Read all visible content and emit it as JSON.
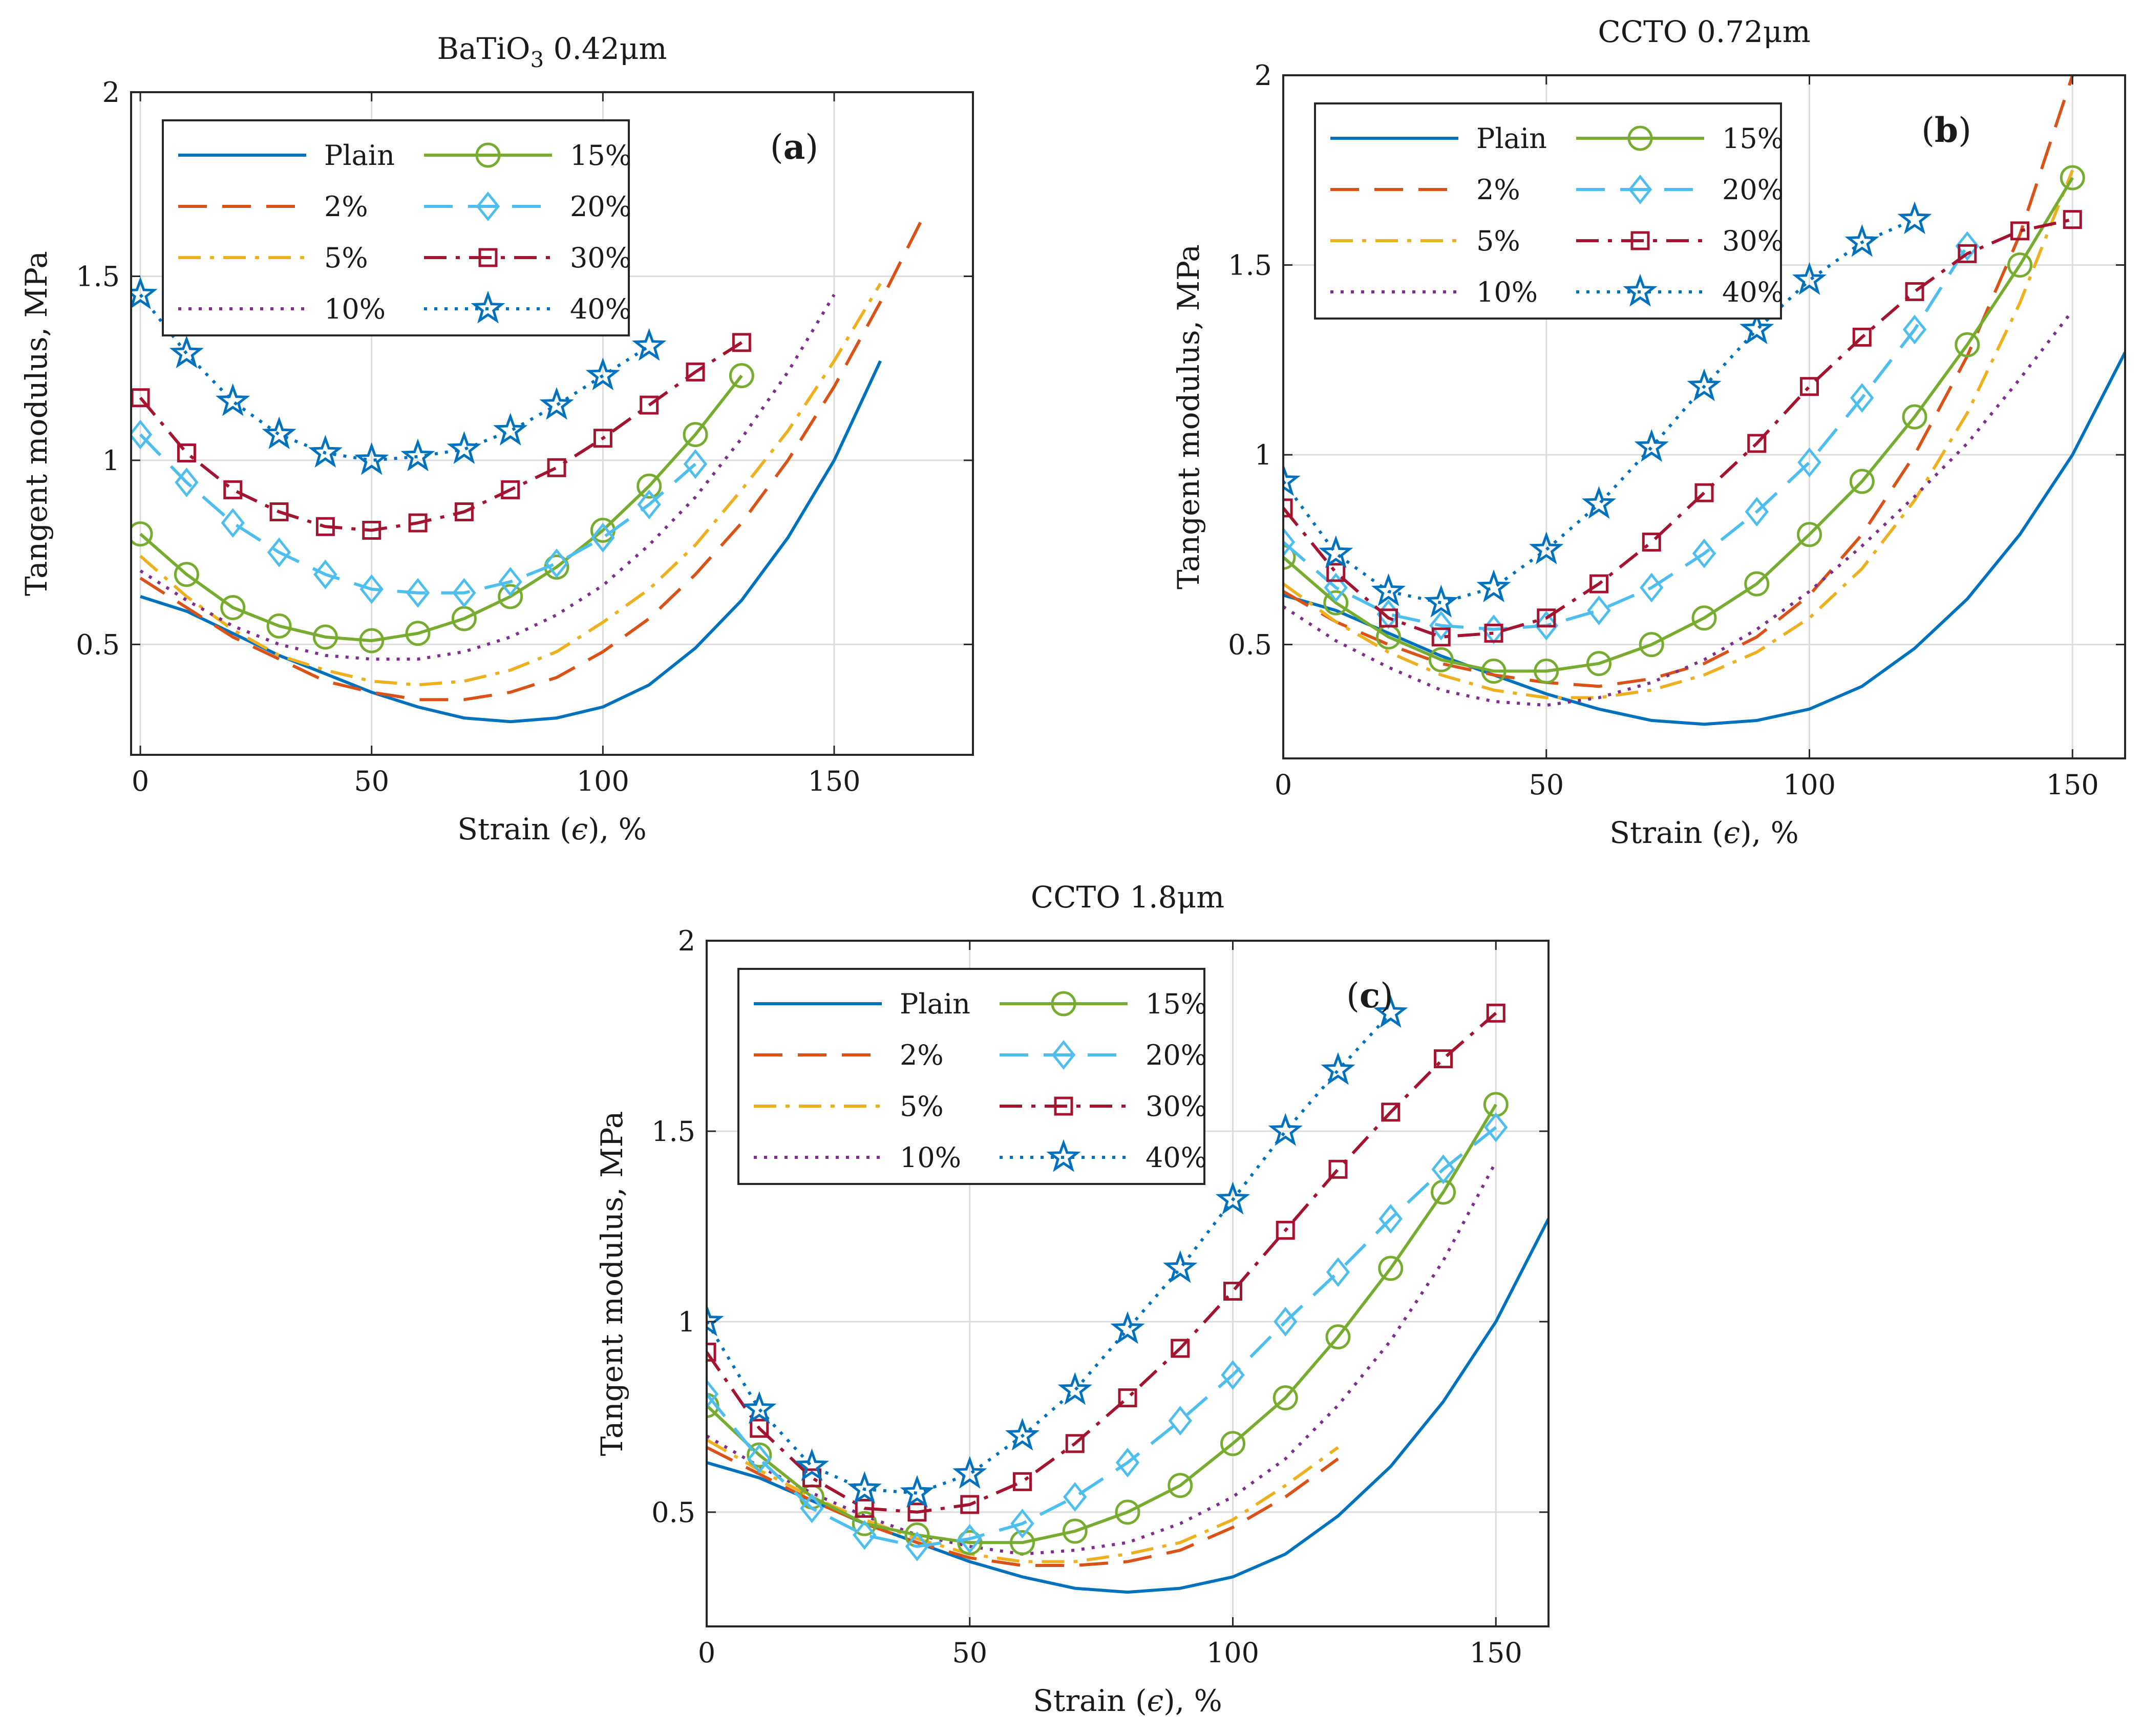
{
  "figure": {
    "series_labels": [
      "Plain",
      "2%",
      "5%",
      "10%",
      "15%",
      "20%",
      "30%",
      "40%"
    ],
    "series_colors": [
      "#0072BD",
      "#D95319",
      "#EDB120",
      "#7E2F8E",
      "#77AC30",
      "#4DBEEE",
      "#A2142F",
      "#0072BD"
    ]
  },
  "chart_data": [
    {
      "type": "line",
      "panel_label": "(a)",
      "title": "BaTiO3 0.42μm",
      "title_main": "BaTiO",
      "title_sub": "3",
      "title_tail": " 0.42μm",
      "xlabel_prefix": "Strain (",
      "xlabel_symbol": "ϵ",
      "xlabel_suffix": "), %",
      "ylabel": "Tangent modulus, MPa",
      "xlim": [
        -2,
        180
      ],
      "ylim": [
        0.2,
        2
      ],
      "xticks": [
        0,
        50,
        100,
        150
      ],
      "yticks": [
        0.5,
        1,
        1.5,
        2
      ],
      "xtick_labels": [
        "0",
        "50",
        "100",
        "150"
      ],
      "ytick_labels": [
        "0.5",
        "1",
        "1.5",
        "2"
      ],
      "grid": true,
      "legend_location": "top-left",
      "series": [
        {
          "name": "Plain",
          "x": [
            0,
            10,
            20,
            30,
            40,
            50,
            60,
            70,
            80,
            90,
            100,
            110,
            120,
            130,
            140,
            150,
            160
          ],
          "values": [
            0.63,
            0.59,
            0.53,
            0.47,
            0.42,
            0.37,
            0.33,
            0.3,
            0.29,
            0.3,
            0.33,
            0.39,
            0.49,
            0.62,
            0.79,
            1.0,
            1.27
          ]
        },
        {
          "name": "2%",
          "x": [
            0,
            10,
            20,
            30,
            40,
            50,
            60,
            70,
            80,
            90,
            100,
            110,
            120,
            130,
            140,
            150,
            160,
            170
          ],
          "values": [
            0.68,
            0.6,
            0.52,
            0.46,
            0.4,
            0.37,
            0.35,
            0.35,
            0.37,
            0.41,
            0.48,
            0.57,
            0.69,
            0.83,
            1.0,
            1.2,
            1.43,
            1.68
          ]
        },
        {
          "name": "5%",
          "x": [
            0,
            10,
            20,
            30,
            40,
            50,
            60,
            70,
            80,
            90,
            100,
            110,
            120,
            130,
            140,
            150,
            160
          ],
          "values": [
            0.74,
            0.63,
            0.54,
            0.47,
            0.43,
            0.4,
            0.39,
            0.4,
            0.43,
            0.48,
            0.56,
            0.65,
            0.77,
            0.92,
            1.08,
            1.27,
            1.48
          ]
        },
        {
          "name": "10%",
          "x": [
            0,
            10,
            20,
            30,
            40,
            50,
            60,
            70,
            80,
            90,
            100,
            110,
            120,
            130,
            140,
            150
          ],
          "values": [
            0.7,
            0.62,
            0.55,
            0.5,
            0.47,
            0.46,
            0.46,
            0.48,
            0.52,
            0.58,
            0.66,
            0.77,
            0.9,
            1.06,
            1.24,
            1.45
          ]
        },
        {
          "name": "15%",
          "x": [
            0,
            10,
            20,
            30,
            40,
            50,
            60,
            70,
            80,
            90,
            100,
            110,
            120,
            130
          ],
          "values": [
            0.8,
            0.69,
            0.6,
            0.55,
            0.52,
            0.51,
            0.53,
            0.57,
            0.63,
            0.71,
            0.81,
            0.93,
            1.07,
            1.23
          ]
        },
        {
          "name": "20%",
          "x": [
            0,
            10,
            20,
            30,
            40,
            50,
            60,
            70,
            80,
            90,
            100,
            110,
            120
          ],
          "values": [
            1.07,
            0.94,
            0.83,
            0.75,
            0.69,
            0.65,
            0.64,
            0.64,
            0.67,
            0.72,
            0.79,
            0.88,
            0.99
          ]
        },
        {
          "name": "30%",
          "x": [
            0,
            10,
            20,
            30,
            40,
            50,
            60,
            70,
            80,
            90,
            100,
            110,
            120,
            130
          ],
          "values": [
            1.17,
            1.02,
            0.92,
            0.86,
            0.82,
            0.81,
            0.83,
            0.86,
            0.92,
            0.98,
            1.06,
            1.15,
            1.24,
            1.32
          ]
        },
        {
          "name": "40%",
          "x": [
            0,
            10,
            20,
            30,
            40,
            50,
            60,
            70,
            80,
            90,
            100,
            110
          ],
          "values": [
            1.45,
            1.29,
            1.16,
            1.07,
            1.02,
            1.0,
            1.01,
            1.03,
            1.08,
            1.15,
            1.23,
            1.31
          ]
        }
      ]
    },
    {
      "type": "line",
      "panel_label": "(b)",
      "title": "CCTO 0.72μm",
      "title_main": "CCTO 0.72μm",
      "title_sub": "",
      "title_tail": "",
      "xlabel_prefix": "Strain (",
      "xlabel_symbol": "ϵ",
      "xlabel_suffix": "), %",
      "ylabel": "Tangent modulus, MPa",
      "xlim": [
        0,
        160
      ],
      "ylim": [
        0.2,
        2
      ],
      "xticks": [
        0,
        50,
        100,
        150
      ],
      "yticks": [
        0.5,
        1,
        1.5,
        2
      ],
      "xtick_labels": [
        "0",
        "50",
        "100",
        "150"
      ],
      "ytick_labels": [
        "0.5",
        "1",
        "1.5",
        "2"
      ],
      "grid": true,
      "legend_location": "top-left",
      "series": [
        {
          "name": "Plain",
          "x": [
            0,
            10,
            20,
            30,
            40,
            50,
            60,
            70,
            80,
            90,
            100,
            110,
            120,
            130,
            140,
            150,
            160
          ],
          "values": [
            0.63,
            0.59,
            0.53,
            0.47,
            0.42,
            0.37,
            0.33,
            0.3,
            0.29,
            0.3,
            0.33,
            0.39,
            0.49,
            0.62,
            0.79,
            1.0,
            1.27
          ]
        },
        {
          "name": "2%",
          "x": [
            0,
            10,
            20,
            30,
            40,
            50,
            60,
            70,
            80,
            90,
            100,
            110,
            120,
            130,
            140,
            150
          ],
          "values": [
            0.64,
            0.56,
            0.5,
            0.45,
            0.42,
            0.4,
            0.39,
            0.41,
            0.45,
            0.52,
            0.63,
            0.79,
            1.0,
            1.26,
            1.58,
            2.0
          ]
        },
        {
          "name": "5%",
          "x": [
            0,
            10,
            20,
            30,
            40,
            50,
            60,
            70,
            80,
            90,
            100,
            110,
            120,
            130,
            140,
            150
          ],
          "values": [
            0.66,
            0.56,
            0.48,
            0.42,
            0.38,
            0.36,
            0.36,
            0.38,
            0.42,
            0.48,
            0.57,
            0.7,
            0.88,
            1.11,
            1.4,
            1.75
          ]
        },
        {
          "name": "10%",
          "x": [
            0,
            10,
            20,
            30,
            40,
            50,
            60,
            70,
            80,
            90,
            100,
            110,
            120,
            130,
            140,
            150
          ],
          "values": [
            0.6,
            0.51,
            0.44,
            0.38,
            0.35,
            0.34,
            0.36,
            0.4,
            0.46,
            0.54,
            0.64,
            0.76,
            0.89,
            1.03,
            1.2,
            1.38
          ]
        },
        {
          "name": "15%",
          "x": [
            0,
            10,
            20,
            30,
            40,
            50,
            60,
            70,
            80,
            90,
            100,
            110,
            120,
            130,
            140,
            150
          ],
          "values": [
            0.73,
            0.61,
            0.52,
            0.46,
            0.43,
            0.43,
            0.45,
            0.5,
            0.57,
            0.66,
            0.79,
            0.93,
            1.1,
            1.29,
            1.5,
            1.73
          ]
        },
        {
          "name": "20%",
          "x": [
            0,
            10,
            20,
            30,
            40,
            50,
            60,
            70,
            80,
            90,
            100,
            110,
            120,
            130
          ],
          "values": [
            0.77,
            0.65,
            0.58,
            0.55,
            0.54,
            0.55,
            0.59,
            0.65,
            0.74,
            0.85,
            0.98,
            1.15,
            1.33,
            1.55
          ]
        },
        {
          "name": "30%",
          "x": [
            0,
            10,
            20,
            30,
            40,
            50,
            60,
            70,
            80,
            90,
            100,
            110,
            120,
            130,
            140,
            150
          ],
          "values": [
            0.86,
            0.69,
            0.57,
            0.52,
            0.53,
            0.57,
            0.66,
            0.77,
            0.9,
            1.03,
            1.18,
            1.31,
            1.43,
            1.53,
            1.59,
            1.62
          ]
        },
        {
          "name": "40%",
          "x": [
            0,
            10,
            20,
            30,
            40,
            50,
            60,
            70,
            80,
            90,
            100,
            110,
            120
          ],
          "values": [
            0.93,
            0.74,
            0.64,
            0.61,
            0.65,
            0.75,
            0.87,
            1.02,
            1.18,
            1.33,
            1.46,
            1.56,
            1.62
          ]
        }
      ]
    },
    {
      "type": "line",
      "panel_label": "(c)",
      "title": "CCTO 1.8μm",
      "title_main": "CCTO 1.8μm",
      "title_sub": "",
      "title_tail": "",
      "xlabel_prefix": "Strain (",
      "xlabel_symbol": "ϵ",
      "xlabel_suffix": "), %",
      "ylabel": "Tangent modulus, MPa",
      "xlim": [
        0,
        160
      ],
      "ylim": [
        0.2,
        2
      ],
      "xticks": [
        0,
        50,
        100,
        150
      ],
      "yticks": [
        0.5,
        1,
        1.5,
        2
      ],
      "xtick_labels": [
        "0",
        "50",
        "100",
        "150"
      ],
      "ytick_labels": [
        "0.5",
        "1",
        "1.5",
        "2"
      ],
      "grid": true,
      "legend_location": "top-left",
      "series": [
        {
          "name": "Plain",
          "x": [
            0,
            10,
            20,
            30,
            40,
            50,
            60,
            70,
            80,
            90,
            100,
            110,
            120,
            130,
            140,
            150,
            160
          ],
          "values": [
            0.63,
            0.59,
            0.53,
            0.47,
            0.42,
            0.37,
            0.33,
            0.3,
            0.29,
            0.3,
            0.33,
            0.39,
            0.49,
            0.62,
            0.79,
            1.0,
            1.27
          ]
        },
        {
          "name": "2%",
          "x": [
            0,
            10,
            20,
            30,
            40,
            50,
            60,
            70,
            80,
            90,
            100,
            110,
            120
          ],
          "values": [
            0.67,
            0.6,
            0.53,
            0.47,
            0.42,
            0.38,
            0.36,
            0.36,
            0.37,
            0.4,
            0.46,
            0.54,
            0.64
          ]
        },
        {
          "name": "5%",
          "x": [
            0,
            10,
            20,
            30,
            40,
            50,
            60,
            70,
            80,
            90,
            100,
            110,
            120
          ],
          "values": [
            0.69,
            0.61,
            0.54,
            0.48,
            0.43,
            0.39,
            0.37,
            0.37,
            0.39,
            0.42,
            0.48,
            0.57,
            0.67
          ]
        },
        {
          "name": "10%",
          "x": [
            0,
            10,
            20,
            30,
            40,
            50,
            60,
            70,
            80,
            90,
            100,
            110,
            120,
            130,
            140,
            150
          ],
          "values": [
            0.7,
            0.62,
            0.55,
            0.49,
            0.44,
            0.41,
            0.39,
            0.4,
            0.42,
            0.47,
            0.54,
            0.64,
            0.78,
            0.95,
            1.16,
            1.42
          ]
        },
        {
          "name": "15%",
          "x": [
            0,
            10,
            20,
            30,
            40,
            50,
            60,
            70,
            80,
            90,
            100,
            110,
            120,
            130,
            140,
            150
          ],
          "values": [
            0.78,
            0.65,
            0.54,
            0.47,
            0.44,
            0.42,
            0.42,
            0.45,
            0.5,
            0.57,
            0.68,
            0.8,
            0.96,
            1.14,
            1.34,
            1.57
          ]
        },
        {
          "name": "20%",
          "x": [
            0,
            10,
            20,
            30,
            40,
            50,
            60,
            70,
            80,
            90,
            100,
            110,
            120,
            130,
            140,
            150
          ],
          "values": [
            0.81,
            0.64,
            0.51,
            0.44,
            0.41,
            0.43,
            0.47,
            0.54,
            0.63,
            0.74,
            0.86,
            1.0,
            1.13,
            1.27,
            1.4,
            1.51
          ]
        },
        {
          "name": "30%",
          "x": [
            0,
            10,
            20,
            30,
            40,
            50,
            60,
            70,
            80,
            90,
            100,
            110,
            120,
            130,
            140,
            150
          ],
          "values": [
            0.92,
            0.72,
            0.59,
            0.51,
            0.5,
            0.52,
            0.58,
            0.68,
            0.8,
            0.93,
            1.08,
            1.24,
            1.4,
            1.55,
            1.69,
            1.81
          ]
        },
        {
          "name": "40%",
          "x": [
            0,
            10,
            20,
            30,
            40,
            50,
            60,
            70,
            80,
            90,
            100,
            110,
            120,
            130
          ],
          "values": [
            1.0,
            0.77,
            0.62,
            0.56,
            0.55,
            0.6,
            0.7,
            0.82,
            0.98,
            1.14,
            1.32,
            1.5,
            1.66,
            1.81
          ]
        }
      ]
    }
  ]
}
